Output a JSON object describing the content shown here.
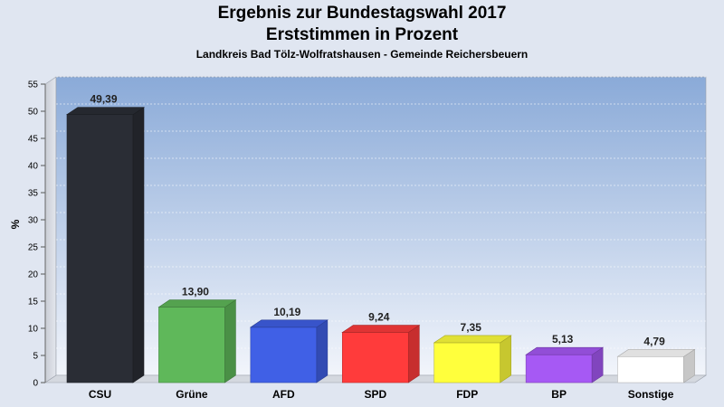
{
  "chart_data": {
    "type": "bar",
    "title": "Ergebnis zur Bundestagswahl 2017",
    "title2": "Erststimmen in Prozent",
    "subtitle": "Landkreis Bad Tölz-Wolfratshausen - Gemeinde Reichersbeuern",
    "ylabel": "%",
    "ylim": [
      0,
      55
    ],
    "yticks": [
      "0",
      "5",
      "10",
      "15",
      "20",
      "25",
      "30",
      "35",
      "40",
      "45",
      "50",
      "55"
    ],
    "categories": [
      "CSU",
      "Grüne",
      "AFD",
      "SPD",
      "FDP",
      "BP",
      "Sonstige"
    ],
    "values": [
      49.39,
      13.9,
      10.19,
      9.24,
      7.35,
      5.13,
      4.79
    ],
    "value_labels": [
      "49,39",
      "13,90",
      "10,19",
      "9,24",
      "7,35",
      "5,13",
      "4,79"
    ],
    "colors": [
      "#2a2d35",
      "#5fb85a",
      "#4060e6",
      "#ff3b3b",
      "#ffff3c",
      "#a659f4",
      "#ffffff"
    ],
    "grid": true
  }
}
